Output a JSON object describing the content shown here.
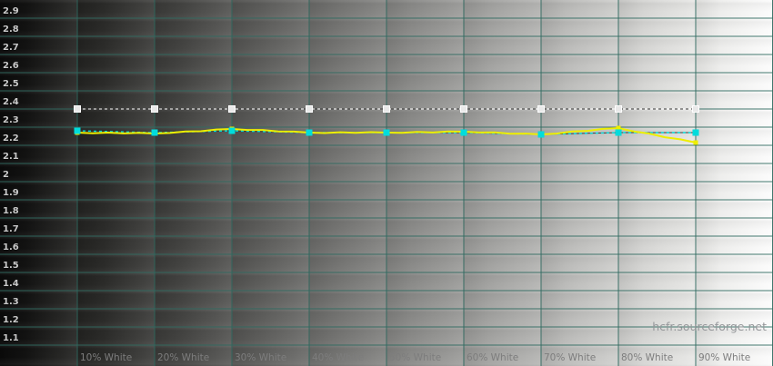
{
  "watermark": {
    "text": "hcfr.sourceforge.net"
  },
  "colors": {
    "grid": "#2f6a60",
    "grid_underlay": "#3f3f3f",
    "y_label": "#c8c8c8",
    "x_label": "#7d7d7d",
    "watermark": "#95979a",
    "reference_line": "#ffffff",
    "reference_marker_fill": "#e9e9e9",
    "points_line": "#00dcdc",
    "measured_line": "#eeee00"
  },
  "chart_data": {
    "type": "line",
    "title": "",
    "xlabel": "",
    "ylabel": "",
    "x": [
      10,
      20,
      30,
      40,
      50,
      60,
      70,
      80,
      90
    ],
    "x_tick_labels": [
      "10% White",
      "20% White",
      "30% White",
      "40% White",
      "50% White",
      "60% White",
      "70% White",
      "80% White",
      "90% White"
    ],
    "y_ticks": [
      2.9,
      2.8,
      2.7,
      2.6,
      2.5,
      2.4,
      2.3,
      2.2,
      2.1,
      2.0,
      1.9,
      1.8,
      1.7,
      1.6,
      1.5,
      1.4,
      1.3,
      1.2,
      1.1
    ],
    "y_tick_labels": [
      "2.9",
      "2.8",
      "2.7",
      "2.6",
      "2.5",
      "2.4",
      "2.3",
      "2.2",
      "2.1",
      "2",
      "1.9",
      "1.8",
      "1.7",
      "1.6",
      "1.5",
      "1.4",
      "1.3",
      "1.2",
      "1.1"
    ],
    "ylim": [
      0.985,
      3.0
    ],
    "grid": true,
    "legend": "none",
    "series": [
      {
        "name": "reference gamma (white dashed)",
        "line_style": "dashed",
        "marker": "square",
        "values": [
          2.4,
          2.4,
          2.4,
          2.4,
          2.4,
          2.4,
          2.4,
          2.4,
          2.4
        ]
      },
      {
        "name": "gamma data points (cyan dashed)",
        "line_style": "dashed",
        "marker": "square",
        "values": [
          2.28,
          2.27,
          2.28,
          2.27,
          2.27,
          2.27,
          2.26,
          2.27,
          2.27
        ]
      },
      {
        "name": "measured gamma curve (yellow)",
        "line_style": "solid",
        "marker": "square-small",
        "values": [
          2.27,
          2.265,
          2.29,
          2.27,
          2.27,
          2.275,
          2.26,
          2.295,
          2.215
        ]
      }
    ]
  }
}
